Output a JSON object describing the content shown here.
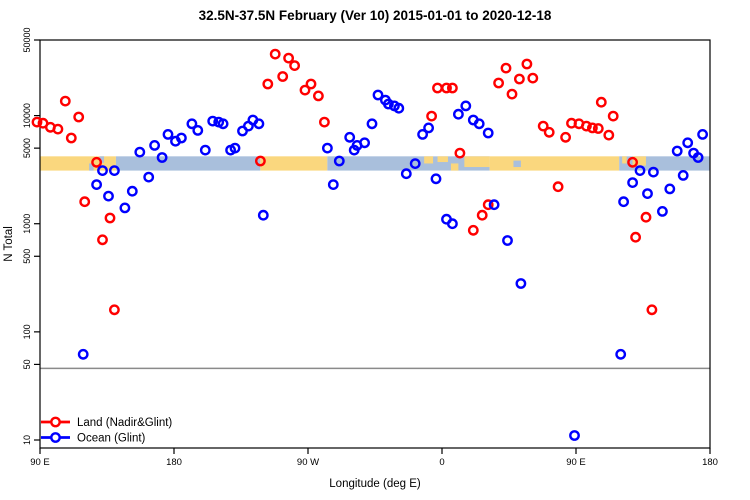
{
  "figure": {
    "background": "#ffffff"
  },
  "chart_data": {
    "type": "scatter",
    "title": "32.5N-37.5N February (Ver 10)  2015-01-01 to 2020-12-18",
    "xlabel": "Longitude (deg E)",
    "ylabel": "N Total",
    "x_axis": {
      "range_deg_east": [
        90,
        540
      ],
      "ticks": [
        {
          "value": 90,
          "label": "90 E"
        },
        {
          "value": 180,
          "label": "180"
        },
        {
          "value": 270,
          "label": "90 W"
        },
        {
          "value": 360,
          "label": "0"
        },
        {
          "value": 450,
          "label": "90 E"
        },
        {
          "value": 540,
          "label": "180"
        }
      ]
    },
    "y_axis": {
      "scale": "log",
      "range": [
        10,
        50000
      ],
      "ticks": [
        {
          "value": 50000,
          "label": "50000"
        },
        {
          "value": 10000,
          "label": "10000"
        },
        {
          "value": 5000,
          "label": "5000"
        },
        {
          "value": 1000,
          "label": "1000"
        },
        {
          "value": 500,
          "label": "500"
        },
        {
          "value": 100,
          "label": "100"
        },
        {
          "value": 50,
          "label": "50"
        },
        {
          "value": 10,
          "label": "10"
        }
      ]
    },
    "reference_line": {
      "value": 46,
      "color": "#8a8a8a"
    },
    "coast_band": {
      "value_range": [
        3100,
        4200
      ],
      "land_color": "#fad77e",
      "ocean_color": "#a9bfdc",
      "segments": [
        {
          "from": 90,
          "to": 141,
          "type": "land"
        },
        {
          "from": 141,
          "to": 238,
          "type": "ocean"
        },
        {
          "from": 238,
          "to": 283,
          "type": "land"
        },
        {
          "from": 283,
          "to": 392,
          "type": "ocean"
        },
        {
          "from": 392,
          "to": 479,
          "type": "land"
        },
        {
          "from": 479,
          "to": 540,
          "type": "ocean"
        }
      ],
      "patches": [
        {
          "from": 123,
          "to": 126,
          "type": "ocean",
          "top": 0.5,
          "bottom": 1
        },
        {
          "from": 130,
          "to": 133,
          "type": "ocean",
          "top": 0,
          "bottom": 0.45
        },
        {
          "from": 348,
          "to": 354,
          "type": "land",
          "top": 0,
          "bottom": 0.5
        },
        {
          "from": 357,
          "to": 364,
          "type": "land",
          "top": 0,
          "bottom": 0.4
        },
        {
          "from": 366,
          "to": 371,
          "type": "land",
          "top": 0.5,
          "bottom": 1
        },
        {
          "from": 375,
          "to": 392,
          "type": "land",
          "top": 0,
          "bottom": 0.75
        },
        {
          "from": 408,
          "to": 413,
          "type": "ocean",
          "top": 0.3,
          "bottom": 0.75
        },
        {
          "from": 481,
          "to": 484,
          "type": "land",
          "top": 0,
          "bottom": 0.5
        },
        {
          "from": 488,
          "to": 497,
          "type": "land",
          "top": 0,
          "bottom": 0.65
        }
      ]
    },
    "legend": {
      "position": "bottom-left",
      "entries": [
        "Land (Nadir&Glint)",
        "Ocean (Glint)"
      ]
    },
    "series": [
      {
        "name": "Land (Nadir&Glint)",
        "color": "#ff0000",
        "marker": "open-circle",
        "points": [
          [
            88,
            8700
          ],
          [
            92,
            8500
          ],
          [
            97,
            7800
          ],
          [
            102,
            7500
          ],
          [
            107,
            13600
          ],
          [
            116,
            9700
          ],
          [
            111,
            6200
          ],
          [
            128,
            3700
          ],
          [
            120,
            1600
          ],
          [
            137,
            1130
          ],
          [
            132,
            710
          ],
          [
            140,
            160
          ],
          [
            238,
            3800
          ],
          [
            243,
            19600
          ],
          [
            248,
            37000
          ],
          [
            257,
            34000
          ],
          [
            261,
            29000
          ],
          [
            253,
            23000
          ],
          [
            272,
            19600
          ],
          [
            268,
            17200
          ],
          [
            277,
            15200
          ],
          [
            281,
            8700
          ],
          [
            353,
            9900
          ],
          [
            357,
            18000
          ],
          [
            363,
            18000
          ],
          [
            367,
            18000
          ],
          [
            372,
            4500
          ],
          [
            381,
            870
          ],
          [
            387,
            1200
          ],
          [
            391,
            1500
          ],
          [
            398,
            20000
          ],
          [
            403,
            27500
          ],
          [
            417,
            30000
          ],
          [
            412,
            21800
          ],
          [
            421,
            22200
          ],
          [
            407,
            15800
          ],
          [
            428,
            8000
          ],
          [
            432,
            7000
          ],
          [
            443,
            6300
          ],
          [
            447,
            8500
          ],
          [
            452,
            8400
          ],
          [
            457,
            8000
          ],
          [
            461,
            7700
          ],
          [
            465,
            7600
          ],
          [
            467,
            13300
          ],
          [
            475,
            9900
          ],
          [
            472,
            6600
          ],
          [
            438,
            2200
          ],
          [
            488,
            3700
          ],
          [
            497,
            1150
          ],
          [
            490,
            750
          ],
          [
            501,
            160
          ]
        ]
      },
      {
        "name": "Ocean (Glint)",
        "color": "#0000ff",
        "marker": "open-circle",
        "points": [
          [
            119,
            62
          ],
          [
            132,
            3100
          ],
          [
            140,
            3100
          ],
          [
            128,
            2300
          ],
          [
            136,
            1800
          ],
          [
            152,
            2000
          ],
          [
            147,
            1400
          ],
          [
            157,
            4600
          ],
          [
            163,
            2700
          ],
          [
            167,
            5300
          ],
          [
            172,
            4100
          ],
          [
            176,
            6700
          ],
          [
            181,
            5800
          ],
          [
            185,
            6200
          ],
          [
            192,
            8400
          ],
          [
            196,
            7300
          ],
          [
            201,
            4800
          ],
          [
            206,
            8900
          ],
          [
            210,
            8700
          ],
          [
            213,
            8400
          ],
          [
            218,
            4800
          ],
          [
            221,
            5000
          ],
          [
            226,
            7200
          ],
          [
            230,
            8000
          ],
          [
            233,
            9100
          ],
          [
            237,
            8400
          ],
          [
            240,
            1200
          ],
          [
            283,
            5000
          ],
          [
            287,
            2300
          ],
          [
            291,
            3800
          ],
          [
            298,
            6300
          ],
          [
            301,
            4800
          ],
          [
            303,
            5300
          ],
          [
            308,
            5600
          ],
          [
            313,
            8400
          ],
          [
            317,
            15500
          ],
          [
            322,
            13900
          ],
          [
            324,
            12800
          ],
          [
            328,
            12300
          ],
          [
            331,
            11700
          ],
          [
            336,
            2900
          ],
          [
            342,
            3600
          ],
          [
            347,
            6700
          ],
          [
            351,
            7700
          ],
          [
            356,
            2600
          ],
          [
            363,
            1100
          ],
          [
            367,
            1000
          ],
          [
            371,
            10300
          ],
          [
            376,
            12300
          ],
          [
            381,
            9100
          ],
          [
            385,
            8400
          ],
          [
            391,
            6900
          ],
          [
            395,
            1500
          ],
          [
            404,
            700
          ],
          [
            413,
            280
          ],
          [
            449,
            11
          ],
          [
            480,
            62
          ],
          [
            482,
            1600
          ],
          [
            488,
            2400
          ],
          [
            493,
            3100
          ],
          [
            498,
            1900
          ],
          [
            502,
            3000
          ],
          [
            508,
            1300
          ],
          [
            513,
            2100
          ],
          [
            518,
            4700
          ],
          [
            522,
            2800
          ],
          [
            525,
            5600
          ],
          [
            529,
            4500
          ],
          [
            532,
            4100
          ],
          [
            535,
            6700
          ]
        ]
      }
    ]
  }
}
